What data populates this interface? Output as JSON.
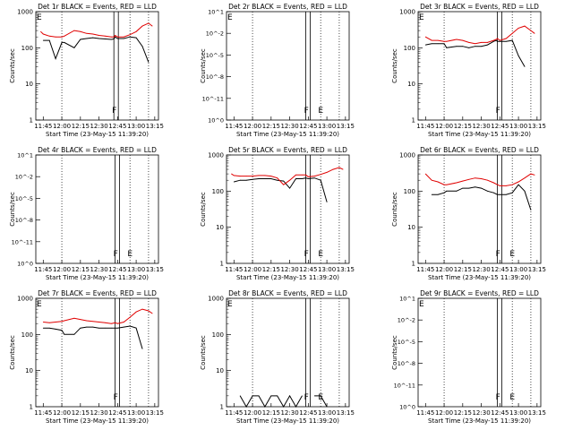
{
  "figure": {
    "xlabel": "Start Time (23-May-15 11:39:20)",
    "ylabel": "Counts/sec",
    "x_ticks": [
      "11:45",
      "12:00",
      "12:15",
      "12:30",
      "12:45",
      "13:00",
      "13:15"
    ],
    "y_ticks_log": [
      "1",
      "10",
      "100",
      "1000"
    ],
    "y_ticks_empty": [
      "10^0",
      "10^-11",
      "10^-8",
      "10^-5",
      "10^-2",
      "10^1"
    ],
    "marker_labels": [
      "F",
      "E"
    ],
    "colors": {
      "events": "#000000",
      "lld": "#e00000",
      "axis": "#000000"
    }
  },
  "chart_data": [
    {
      "type": "line",
      "title": "Det 1r BLACK = Events, RED = LLD",
      "scale": "log",
      "ylim": [
        1,
        1000
      ],
      "x": [
        "11:43",
        "11:45",
        "11:50",
        "11:55",
        "12:00",
        "12:02",
        "12:10",
        "12:15",
        "12:20",
        "12:25",
        "12:30",
        "12:35",
        "12:40",
        "12:42",
        "12:43",
        "12:45",
        "12:50",
        "12:55",
        "13:00",
        "13:05",
        "13:10",
        "13:13"
      ],
      "series": [
        {
          "name": "Events",
          "values": [
            null,
            160,
            160,
            50,
            140,
            140,
            100,
            170,
            180,
            190,
            180,
            175,
            170,
            175,
            200,
            180,
            180,
            200,
            190,
            110,
            40,
            null
          ]
        },
        {
          "name": "LLD",
          "values": [
            280,
            240,
            210,
            200,
            200,
            210,
            300,
            280,
            250,
            240,
            220,
            210,
            200,
            200,
            220,
            200,
            200,
            230,
            280,
            400,
            480,
            400
          ]
        }
      ],
      "markers": [
        {
          "label": "F",
          "x": "12:42"
        },
        {
          "label": "E",
          "x": "11:43"
        }
      ]
    },
    {
      "type": "line",
      "title": "Det 2r BLACK = Events, RED = LLD",
      "scale": "empty",
      "series": [],
      "markers": [
        {
          "label": "F",
          "x": "12:43"
        },
        {
          "label": "E",
          "x": "12:53"
        },
        {
          "label": "E",
          "x": "11:43"
        }
      ]
    },
    {
      "type": "line",
      "title": "Det 3r BLACK = Events, RED = LLD",
      "scale": "log",
      "ylim": [
        1,
        1000
      ],
      "x": [
        "11:43",
        "11:45",
        "11:50",
        "11:55",
        "12:00",
        "12:02",
        "12:10",
        "12:15",
        "12:20",
        "12:25",
        "12:30",
        "12:35",
        "12:40",
        "12:42",
        "12:43",
        "12:45",
        "12:50",
        "12:55",
        "13:00",
        "13:05",
        "13:10",
        "13:13"
      ],
      "series": [
        {
          "name": "Events",
          "values": [
            null,
            120,
            130,
            130,
            130,
            100,
            110,
            110,
            100,
            110,
            110,
            120,
            150,
            160,
            150,
            150,
            150,
            160,
            60,
            30,
            null,
            null
          ]
        },
        {
          "name": "LLD",
          "values": [
            null,
            200,
            160,
            160,
            150,
            150,
            170,
            160,
            140,
            130,
            140,
            140,
            160,
            170,
            180,
            160,
            180,
            250,
            350,
            400,
            300,
            250
          ]
        }
      ],
      "markers": [
        {
          "label": "F",
          "x": "12:43"
        },
        {
          "label": "E",
          "x": "11:43"
        }
      ]
    },
    {
      "type": "line",
      "title": "Det 4r BLACK = Events, RED = LLD",
      "scale": "empty",
      "series": [],
      "markers": [
        {
          "label": "F",
          "x": "12:43"
        },
        {
          "label": "E",
          "x": "12:53"
        }
      ]
    },
    {
      "type": "line",
      "title": "Det 5r BLACK = Events, RED = LLD",
      "scale": "log",
      "ylim": [
        1,
        1000
      ],
      "x": [
        "11:43",
        "11:45",
        "11:50",
        "11:55",
        "12:00",
        "12:05",
        "12:10",
        "12:15",
        "12:20",
        "12:25",
        "12:30",
        "12:35",
        "12:40",
        "12:43",
        "12:45",
        "12:50",
        "12:55",
        "13:00",
        "13:05",
        "13:10",
        "13:13"
      ],
      "series": [
        {
          "name": "Events",
          "values": [
            null,
            180,
            200,
            200,
            210,
            220,
            220,
            220,
            200,
            190,
            120,
            220,
            220,
            230,
            220,
            230,
            200,
            50,
            null,
            null,
            null
          ]
        },
        {
          "name": "LLD",
          "values": [
            300,
            270,
            260,
            260,
            260,
            270,
            270,
            260,
            230,
            150,
            200,
            280,
            280,
            280,
            250,
            260,
            290,
            330,
            400,
            450,
            400
          ]
        }
      ],
      "markers": [
        {
          "label": "F",
          "x": "12:43"
        },
        {
          "label": "E",
          "x": "12:53"
        }
      ]
    },
    {
      "type": "line",
      "title": "Det 6r BLACK = Events, RED = LLD",
      "scale": "log",
      "ylim": [
        1,
        1000
      ],
      "x": [
        "11:43",
        "11:45",
        "11:50",
        "11:55",
        "12:00",
        "12:02",
        "12:10",
        "12:15",
        "12:20",
        "12:25",
        "12:30",
        "12:35",
        "12:40",
        "12:43",
        "12:45",
        "12:50",
        "12:55",
        "13:00",
        "13:05",
        "13:10",
        "13:13"
      ],
      "series": [
        {
          "name": "Events",
          "values": [
            null,
            null,
            80,
            80,
            90,
            100,
            100,
            120,
            120,
            130,
            120,
            100,
            90,
            80,
            80,
            80,
            90,
            150,
            100,
            30,
            null
          ]
        },
        {
          "name": "LLD",
          "values": [
            null,
            300,
            200,
            180,
            150,
            150,
            170,
            190,
            210,
            230,
            220,
            200,
            170,
            150,
            140,
            140,
            150,
            180,
            230,
            300,
            280
          ]
        }
      ],
      "markers": [
        {
          "label": "F",
          "x": "12:43"
        },
        {
          "label": "E",
          "x": "12:53"
        }
      ]
    },
    {
      "type": "line",
      "title": "Det 7r BLACK = Events, RED = LLD",
      "scale": "log",
      "ylim": [
        1,
        1000
      ],
      "x": [
        "11:43",
        "11:45",
        "11:50",
        "11:55",
        "12:00",
        "12:02",
        "12:10",
        "12:15",
        "12:20",
        "12:25",
        "12:30",
        "12:35",
        "12:40",
        "12:43",
        "12:45",
        "12:50",
        "12:55",
        "13:00",
        "13:05",
        "13:10",
        "13:13"
      ],
      "series": [
        {
          "name": "Events",
          "values": [
            null,
            150,
            150,
            140,
            130,
            100,
            100,
            150,
            160,
            160,
            150,
            150,
            150,
            150,
            150,
            160,
            170,
            150,
            40,
            null,
            null
          ]
        },
        {
          "name": "LLD",
          "values": [
            null,
            220,
            210,
            220,
            230,
            240,
            280,
            260,
            240,
            230,
            220,
            210,
            200,
            210,
            200,
            220,
            300,
            420,
            500,
            450,
            380
          ]
        }
      ],
      "markers": [
        {
          "label": "F",
          "x": "12:43"
        },
        {
          "label": "E",
          "x": "11:43"
        }
      ]
    },
    {
      "type": "line",
      "title": "Det 8r BLACK = Events, RED = LLD",
      "scale": "log",
      "ylim": [
        1,
        1000
      ],
      "x": [
        "11:45",
        "11:50",
        "11:55",
        "12:00",
        "12:05",
        "12:10",
        "12:15",
        "12:20",
        "12:25",
        "12:30",
        "12:35",
        "12:40",
        "12:43",
        "12:45",
        "12:50",
        "12:55",
        "13:00",
        "13:05"
      ],
      "series": [
        {
          "name": "Events",
          "values": [
            null,
            2,
            1,
            2,
            2,
            1,
            2,
            2,
            1,
            2,
            1,
            2,
            null,
            null,
            2,
            2,
            1,
            null
          ]
        }
      ],
      "markers": [
        {
          "label": "F",
          "x": "12:43"
        },
        {
          "label": "E",
          "x": "12:53"
        },
        {
          "label": "E",
          "x": "11:43"
        }
      ]
    },
    {
      "type": "line",
      "title": "Det 9r BLACK = Events, RED = LLD",
      "scale": "empty",
      "series": [],
      "markers": [
        {
          "label": "F",
          "x": "12:43"
        },
        {
          "label": "E",
          "x": "12:53"
        },
        {
          "label": "E",
          "x": "11:43"
        }
      ]
    }
  ]
}
